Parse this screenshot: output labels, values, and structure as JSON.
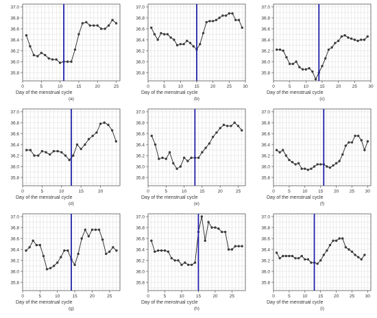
{
  "figure": {
    "colors": {
      "point": "#3a3a3a",
      "line": "#222222",
      "vline": "#1f1fa8",
      "grid": "#d9d9d9",
      "frame": "#555555"
    }
  },
  "chart_data": [
    {
      "type": "line",
      "caption": "(a)",
      "xlabel": "Day of the menstrual cycle",
      "ylabel": "",
      "xlim": [
        0,
        26
      ],
      "ylim": [
        35.65,
        37.05
      ],
      "xticks": [
        0,
        5,
        10,
        15,
        20,
        25
      ],
      "yticks": [
        35.8,
        36.0,
        36.2,
        36.4,
        36.6,
        36.8,
        37.0
      ],
      "grid": true,
      "vline_x": 11,
      "x": [
        1,
        2,
        3,
        4,
        5,
        6,
        7,
        8,
        9,
        10,
        11,
        12,
        13,
        14,
        15,
        16,
        17,
        18,
        19,
        20,
        21,
        22,
        23,
        24,
        25
      ],
      "y": [
        36.48,
        36.28,
        36.12,
        36.1,
        36.16,
        36.12,
        36.06,
        36.04,
        36.04,
        35.98,
        36.0,
        36.0,
        36.0,
        36.22,
        36.5,
        36.7,
        36.72,
        36.66,
        36.66,
        36.66,
        36.6,
        36.6,
        36.66,
        36.76,
        36.7
      ]
    },
    {
      "type": "line",
      "caption": "(b)",
      "xlabel": "Day of the menstrual cycle",
      "ylabel": "",
      "xlim": [
        0,
        30
      ],
      "ylim": [
        35.65,
        37.05
      ],
      "xticks": [
        0,
        5,
        10,
        15,
        20,
        25,
        30
      ],
      "yticks": [
        35.8,
        36.0,
        36.2,
        36.4,
        36.6,
        36.8,
        37.0
      ],
      "grid": true,
      "vline_x": 15,
      "x": [
        1,
        2,
        3,
        4,
        5,
        6,
        7,
        8,
        9,
        10,
        11,
        12,
        13,
        14,
        15,
        16,
        17,
        18,
        19,
        20,
        21,
        22,
        23,
        24,
        25,
        26,
        27,
        28,
        29
      ],
      "y": [
        36.62,
        36.5,
        36.4,
        36.52,
        36.5,
        36.5,
        36.44,
        36.4,
        36.3,
        36.32,
        36.32,
        36.38,
        36.34,
        36.28,
        36.22,
        36.32,
        36.52,
        36.72,
        36.74,
        36.74,
        36.76,
        36.8,
        36.84,
        36.84,
        36.88,
        36.88,
        36.76,
        36.76,
        36.62
      ]
    },
    {
      "type": "line",
      "caption": "(c)",
      "xlabel": "Day of the menstrual cycle",
      "ylabel": "",
      "xlim": [
        0,
        30
      ],
      "ylim": [
        35.65,
        37.05
      ],
      "xticks": [
        0,
        5,
        10,
        15,
        20,
        25,
        30
      ],
      "yticks": [
        35.8,
        36.0,
        36.2,
        36.4,
        36.6,
        36.8,
        37.0
      ],
      "grid": true,
      "vline_x": 14,
      "x": [
        1,
        2,
        3,
        4,
        5,
        6,
        7,
        8,
        9,
        10,
        11,
        12,
        13,
        14,
        15,
        16,
        17,
        18,
        19,
        20,
        21,
        22,
        23,
        24,
        25,
        26,
        27,
        28,
        29
      ],
      "y": [
        36.22,
        36.22,
        36.2,
        36.08,
        35.96,
        35.96,
        36.0,
        35.9,
        35.86,
        35.86,
        35.88,
        35.82,
        35.68,
        35.8,
        35.92,
        36.06,
        36.22,
        36.26,
        36.34,
        36.38,
        36.46,
        36.48,
        36.44,
        36.42,
        36.4,
        36.38,
        36.4,
        36.4,
        36.46
      ]
    },
    {
      "type": "line",
      "caption": "(d)",
      "xlabel": "Day of the menstrual cycle",
      "ylabel": "",
      "xlim": [
        0,
        25
      ],
      "ylim": [
        35.65,
        37.05
      ],
      "xticks": [
        0,
        5,
        10,
        15,
        20
      ],
      "yticks": [
        35.8,
        36.0,
        36.2,
        36.4,
        36.6,
        36.8,
        37.0
      ],
      "grid": true,
      "vline_x": 12.5,
      "x": [
        1,
        2,
        3,
        4,
        5,
        6,
        7,
        8,
        9,
        10,
        11,
        12,
        13,
        14,
        15,
        16,
        17,
        18,
        19,
        20,
        21,
        22,
        23,
        24
      ],
      "y": [
        36.3,
        36.3,
        36.2,
        36.2,
        36.28,
        36.26,
        36.22,
        36.28,
        36.28,
        36.26,
        36.2,
        36.12,
        36.2,
        36.4,
        36.32,
        36.4,
        36.5,
        36.56,
        36.62,
        36.78,
        36.8,
        36.76,
        36.66,
        36.46
      ]
    },
    {
      "type": "line",
      "caption": "(e)",
      "xlabel": "Day of the menstrual cycle",
      "ylabel": "",
      "xlim": [
        0,
        27
      ],
      "ylim": [
        35.65,
        37.05
      ],
      "xticks": [
        0,
        5,
        10,
        15,
        20,
        25
      ],
      "yticks": [
        35.8,
        36.0,
        36.2,
        36.4,
        36.6,
        36.8,
        37.0
      ],
      "grid": true,
      "vline_x": 13,
      "x": [
        1,
        2,
        3,
        4,
        5,
        6,
        7,
        8,
        9,
        10,
        11,
        12,
        13,
        14,
        15,
        16,
        17,
        18,
        19,
        20,
        21,
        22,
        23,
        24,
        25,
        26
      ],
      "y": [
        36.56,
        36.4,
        36.14,
        36.16,
        36.14,
        36.26,
        36.06,
        35.96,
        36.0,
        36.16,
        36.1,
        36.16,
        36.16,
        36.16,
        36.26,
        36.34,
        36.42,
        36.54,
        36.62,
        36.7,
        36.76,
        36.74,
        36.74,
        36.8,
        36.74,
        36.66
      ]
    },
    {
      "type": "line",
      "caption": "(f)",
      "xlabel": "Day of the menstrual cycle",
      "ylabel": "",
      "xlim": [
        0,
        31
      ],
      "ylim": [
        35.65,
        37.05
      ],
      "xticks": [
        0,
        5,
        10,
        15,
        20,
        25,
        30
      ],
      "yticks": [
        35.8,
        36.0,
        36.2,
        36.4,
        36.6,
        36.8,
        37.0
      ],
      "grid": true,
      "vline_x": 16,
      "x": [
        1,
        2,
        3,
        4,
        5,
        6,
        7,
        8,
        9,
        10,
        11,
        12,
        13,
        14,
        15,
        16,
        17,
        18,
        19,
        20,
        21,
        22,
        23,
        24,
        25,
        26,
        27,
        28,
        29,
        30
      ],
      "y": [
        36.3,
        36.26,
        36.3,
        36.2,
        36.12,
        36.08,
        36.04,
        36.06,
        35.96,
        35.96,
        35.94,
        35.96,
        36.0,
        36.04,
        36.04,
        36.04,
        36.0,
        35.98,
        36.02,
        36.06,
        36.1,
        36.22,
        36.38,
        36.44,
        36.44,
        36.56,
        36.56,
        36.48,
        36.3,
        36.46
      ]
    },
    {
      "type": "line",
      "caption": "(g)",
      "xlabel": "Day of the menstrual cycle",
      "ylabel": "",
      "xlim": [
        0,
        28
      ],
      "ylim": [
        35.65,
        37.05
      ],
      "xticks": [
        0,
        5,
        10,
        15,
        20,
        25
      ],
      "yticks": [
        35.8,
        36.0,
        36.2,
        36.4,
        36.6,
        36.8,
        37.0
      ],
      "grid": true,
      "vline_x": 14,
      "x": [
        1,
        2,
        3,
        4,
        5,
        6,
        7,
        8,
        9,
        10,
        11,
        12,
        13,
        14,
        15,
        16,
        17,
        18,
        19,
        20,
        21,
        22,
        23,
        24,
        25,
        26,
        27
      ],
      "y": [
        36.38,
        36.44,
        36.56,
        36.48,
        36.48,
        36.28,
        36.04,
        36.06,
        36.1,
        36.16,
        36.26,
        36.38,
        36.38,
        36.22,
        36.12,
        36.32,
        36.6,
        36.76,
        36.64,
        36.76,
        36.76,
        36.76,
        36.58,
        36.32,
        36.36,
        36.44,
        36.38
      ]
    },
    {
      "type": "line",
      "caption": "(h)",
      "xlabel": "Day of the menstrual cycle",
      "ylabel": "",
      "xlim": [
        0,
        29
      ],
      "ylim": [
        35.65,
        37.05
      ],
      "xticks": [
        0,
        5,
        10,
        15,
        20,
        25
      ],
      "yticks": [
        35.8,
        36.0,
        36.2,
        36.4,
        36.6,
        36.8,
        37.0
      ],
      "grid": true,
      "vline_x": 15,
      "x": [
        1,
        2,
        3,
        4,
        5,
        6,
        7,
        8,
        9,
        10,
        11,
        12,
        13,
        14,
        15,
        16,
        17,
        18,
        19,
        20,
        21,
        22,
        23,
        24,
        25,
        26,
        27,
        28
      ],
      "y": [
        36.56,
        36.36,
        36.38,
        36.38,
        36.38,
        36.36,
        36.24,
        36.2,
        36.2,
        36.12,
        36.16,
        36.12,
        36.12,
        36.16,
        36.72,
        37.0,
        36.56,
        36.9,
        36.8,
        36.8,
        36.78,
        36.72,
        36.72,
        36.4,
        36.4,
        36.46,
        36.46,
        36.46
      ]
    },
    {
      "type": "line",
      "caption": "(i)",
      "xlabel": "Day of the menstrual cycle",
      "ylabel": "",
      "xlim": [
        0,
        31
      ],
      "ylim": [
        35.65,
        37.05
      ],
      "xticks": [
        0,
        5,
        10,
        15,
        20,
        25,
        30
      ],
      "yticks": [
        35.8,
        36.0,
        36.2,
        36.4,
        36.6,
        36.8,
        37.0
      ],
      "grid": true,
      "vline_x": 13,
      "x": [
        1,
        2,
        3,
        4,
        5,
        6,
        7,
        8,
        9,
        10,
        11,
        12,
        13,
        14,
        15,
        16,
        17,
        18,
        19,
        20,
        21,
        22,
        23,
        24,
        25,
        26,
        27,
        28,
        29
      ],
      "y": [
        36.34,
        36.24,
        36.28,
        36.28,
        36.28,
        36.28,
        36.24,
        36.24,
        36.28,
        36.22,
        36.22,
        36.16,
        36.16,
        36.14,
        36.2,
        36.3,
        36.38,
        36.48,
        36.56,
        36.56,
        36.6,
        36.6,
        36.44,
        36.4,
        36.36,
        36.3,
        36.26,
        36.22,
        36.3
      ]
    }
  ]
}
